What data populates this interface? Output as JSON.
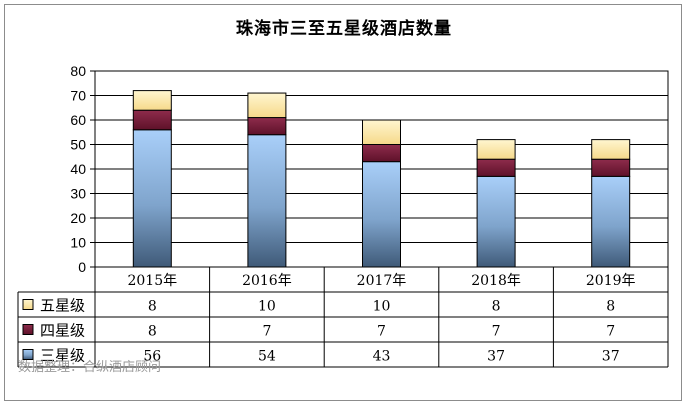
{
  "chart_data": {
    "type": "bar",
    "stacked": true,
    "title": "珠海市三至五星级酒店数量",
    "categories": [
      "2015年",
      "2016年",
      "2017年",
      "2018年",
      "2019年"
    ],
    "series": [
      {
        "name": "三星级",
        "values": [
          56,
          54,
          43,
          37,
          37
        ],
        "color": "#7fb2ec"
      },
      {
        "name": "四星级",
        "values": [
          8,
          7,
          7,
          7,
          7
        ],
        "color": "#7a1f3c"
      },
      {
        "name": "五星级",
        "values": [
          8,
          10,
          10,
          8,
          8
        ],
        "color": "#fde9a8"
      }
    ],
    "yticks": [
      0,
      10,
      20,
      30,
      40,
      50,
      60,
      70,
      80
    ],
    "ylim": [
      0,
      80
    ],
    "grid": true,
    "legend": "data-table-left",
    "source_note": "数据整理：合纵酒店顾问"
  }
}
